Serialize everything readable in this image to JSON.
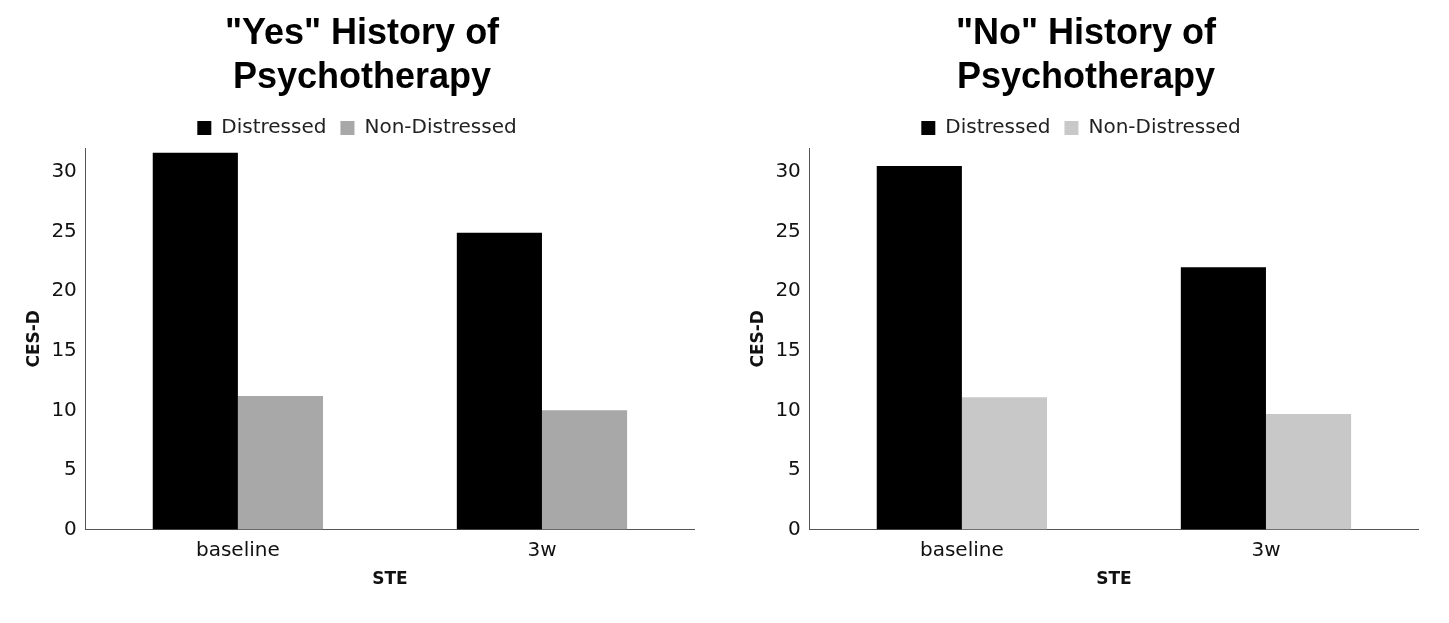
{
  "chart_data": [
    {
      "type": "bar",
      "title": "\"Yes\" History of Psychotherapy",
      "xlabel": "STE",
      "ylabel": "CES-D",
      "categories": [
        "baseline",
        "3w"
      ],
      "series": [
        {
          "name": "Distressed",
          "color": "#000000",
          "values": [
            31.6,
            24.9
          ]
        },
        {
          "name": "Non-Distressed",
          "color": "#a8a8a8",
          "values": [
            11.2,
            10.0
          ]
        }
      ],
      "ylim": [
        0,
        32
      ],
      "yticks": [
        0,
        5,
        10,
        15,
        20,
        25,
        30
      ],
      "legend": "top"
    },
    {
      "type": "bar",
      "title": "\"No\" History of Psychotherapy",
      "xlabel": "STE",
      "ylabel": "CES-D",
      "categories": [
        "baseline",
        "3w"
      ],
      "series": [
        {
          "name": "Distressed",
          "color": "#000000",
          "values": [
            30.5,
            22.0
          ]
        },
        {
          "name": "Non-Distressed",
          "color": "#c8c8c8",
          "values": [
            11.1,
            9.7
          ]
        }
      ],
      "ylim": [
        0,
        32
      ],
      "yticks": [
        0,
        5,
        10,
        15,
        20,
        25,
        30
      ],
      "legend": "top"
    }
  ]
}
